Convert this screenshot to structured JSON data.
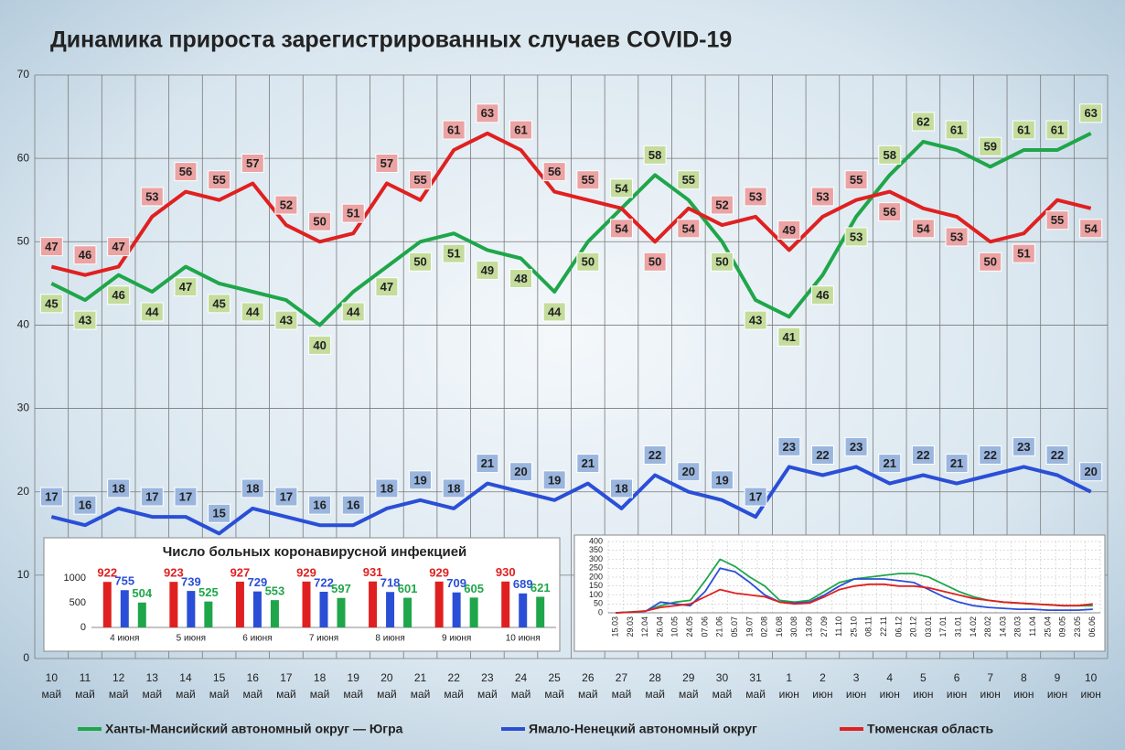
{
  "chart_data": [
    {
      "type": "line",
      "title": "Динамика прироста зарегистрированных случаев COVID-19",
      "categories": [
        "10 май",
        "11 май",
        "12 май",
        "13 май",
        "14 май",
        "15 май",
        "16 май",
        "17 май",
        "18 май",
        "19 май",
        "20 май",
        "21 май",
        "22 май",
        "23 май",
        "24 май",
        "25 май",
        "26 май",
        "27 май",
        "28 май",
        "29 май",
        "30 май",
        "31 май",
        "1 июн",
        "2 июн",
        "3 июн",
        "4 июн",
        "5 июн",
        "6 июн",
        "7 июн",
        "8 июн",
        "9 июн",
        "10 июн"
      ],
      "series": [
        {
          "name": "Ханты-Мансийский автономный округ — Югра",
          "color": "#1fa64a",
          "values": [
            45,
            43,
            46,
            44,
            47,
            45,
            44,
            43,
            40,
            44,
            47,
            50,
            51,
            49,
            48,
            44,
            50,
            54,
            58,
            55,
            50,
            43,
            41,
            46,
            53,
            58,
            62,
            61,
            59,
            61,
            61,
            63
          ]
        },
        {
          "name": "Ямало-Ненецкий автономный округ",
          "color": "#2a4fd6",
          "values": [
            17,
            16,
            18,
            17,
            17,
            15,
            18,
            17,
            16,
            16,
            18,
            19,
            18,
            21,
            20,
            19,
            21,
            18,
            22,
            20,
            19,
            17,
            23,
            22,
            23,
            21,
            22,
            21,
            22,
            23,
            22,
            20
          ]
        },
        {
          "name": "Тюменская область",
          "color": "#e02020",
          "values": [
            47,
            46,
            47,
            53,
            56,
            55,
            57,
            52,
            50,
            51,
            57,
            55,
            61,
            63,
            61,
            56,
            55,
            54,
            50,
            54,
            52,
            53,
            49,
            53,
            55,
            56,
            54,
            53,
            50,
            51,
            55,
            54
          ]
        }
      ],
      "ylim": [
        0,
        70
      ],
      "yticks": [
        0,
        10,
        20,
        30,
        40,
        50,
        60,
        70
      ],
      "grid": true,
      "data_labels": true,
      "legend": "bottom"
    },
    {
      "type": "bar",
      "title": "Число больных коронавирусной инфекцией",
      "categories": [
        "4 июня",
        "5 июня",
        "6 июня",
        "7 июня",
        "8 июня",
        "9 июня",
        "10 июня"
      ],
      "series": [
        {
          "color": "#e02020",
          "values": [
            922,
            923,
            927,
            929,
            931,
            929,
            930
          ]
        },
        {
          "color": "#2a4fd6",
          "values": [
            755,
            739,
            729,
            722,
            718,
            709,
            689
          ]
        },
        {
          "color": "#1fa64a",
          "values": [
            504,
            525,
            553,
            597,
            601,
            605,
            621
          ]
        }
      ],
      "ylim": [
        0,
        1000
      ],
      "yticks": [
        0,
        500,
        1000
      ],
      "grid": false,
      "data_labels": true
    },
    {
      "type": "line",
      "categories": [
        "15.03",
        "29.03",
        "12.04",
        "26.04",
        "10.05",
        "24.05",
        "07.06",
        "21.06",
        "05.07",
        "19.07",
        "02.08",
        "16.08",
        "30.08",
        "13.09",
        "27.09",
        "11.10",
        "25.10",
        "08.11",
        "22.11",
        "06.12",
        "20.12",
        "03.01",
        "17.01",
        "31.01",
        "14.02",
        "28.02",
        "14.03",
        "28.03",
        "11.04",
        "25.04",
        "09.05",
        "23.05",
        "06.06"
      ],
      "series": [
        {
          "color": "#1fa64a",
          "values": [
            0,
            5,
            10,
            40,
            60,
            70,
            180,
            300,
            260,
            200,
            150,
            70,
            60,
            70,
            120,
            170,
            190,
            200,
            210,
            220,
            220,
            200,
            160,
            120,
            90,
            70,
            60,
            55,
            50,
            45,
            40,
            40,
            40
          ]
        },
        {
          "color": "#2a4fd6",
          "values": [
            0,
            3,
            8,
            60,
            50,
            40,
            120,
            250,
            230,
            170,
            100,
            60,
            55,
            60,
            100,
            150,
            190,
            190,
            190,
            180,
            170,
            130,
            90,
            60,
            40,
            30,
            25,
            20,
            20,
            15,
            15,
            15,
            20
          ]
        },
        {
          "color": "#e02020",
          "values": [
            0,
            3,
            10,
            30,
            40,
            50,
            90,
            130,
            110,
            100,
            90,
            60,
            50,
            55,
            90,
            130,
            150,
            160,
            160,
            150,
            150,
            140,
            120,
            100,
            80,
            70,
            60,
            55,
            50,
            45,
            40,
            40,
            50
          ]
        }
      ],
      "ylim": [
        0,
        400
      ],
      "yticks": [
        0,
        50,
        100,
        150,
        200,
        250,
        300,
        350,
        400
      ],
      "grid": true
    }
  ]
}
